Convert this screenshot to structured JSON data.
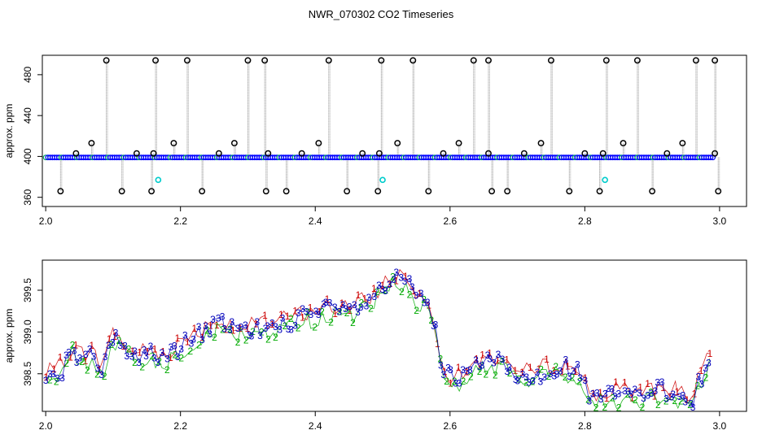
{
  "title": "NWR_070302  CO2 Timeseries",
  "chart_data": [
    {
      "type": "line",
      "ylabel": "approx. ppm",
      "xlim": [
        1.995,
        3.04
      ],
      "ylim": [
        351,
        499
      ],
      "x_ticks": [
        "2.0",
        "2.2",
        "2.4",
        "2.6",
        "2.8",
        "3.0"
      ],
      "y_ticks": [
        "360",
        "400",
        "440",
        "480"
      ],
      "baseline_ppm": 399,
      "series": [
        {
          "color": "#0000ff",
          "spike_up_x": [
            2.09,
            2.163,
            2.21,
            2.3,
            2.325,
            2.42,
            2.498,
            2.545,
            2.635,
            2.657,
            2.75,
            2.832,
            2.878,
            2.965,
            2.993
          ],
          "spike_up_y": 494,
          "spike_mid_x": [
            2.045,
            2.068,
            2.135,
            2.16,
            2.19,
            2.257,
            2.28,
            2.33,
            2.38,
            2.405,
            2.47,
            2.495,
            2.522,
            2.59,
            2.613,
            2.657,
            2.71,
            2.735,
            2.8,
            2.827,
            2.857,
            2.922,
            2.945,
            2.993
          ],
          "spike_mid_y": [
            403,
            413,
            403,
            403,
            413,
            403,
            413,
            403,
            403,
            413,
            403,
            403,
            413,
            403,
            413,
            403,
            403,
            413,
            403,
            403,
            413,
            403,
            413,
            403
          ],
          "spike_down_x": [
            2.022,
            2.113,
            2.157,
            2.232,
            2.327,
            2.357,
            2.447,
            2.493,
            2.568,
            2.662,
            2.685,
            2.777,
            2.822,
            2.9,
            2.998
          ],
          "spike_down_y": 366,
          "cyan_x": [
            2.167,
            2.5,
            2.83
          ],
          "cyan_y": 377
        }
      ]
    },
    {
      "type": "line",
      "ylabel": "approx. ppm",
      "xlim": [
        1.995,
        3.04
      ],
      "ylim": [
        398.05,
        399.86
      ],
      "x_ticks": [
        "2.0",
        "2.2",
        "2.4",
        "2.6",
        "2.8",
        "3.0"
      ],
      "y_ticks": [
        "398.5",
        "399.0",
        "399.5"
      ],
      "x": [
        2.0,
        2.025,
        2.04,
        2.05,
        2.07,
        2.085,
        2.1,
        2.13,
        2.15,
        2.18,
        2.22,
        2.26,
        2.29,
        2.33,
        2.37,
        2.41,
        2.45,
        2.48,
        2.51,
        2.53,
        2.55,
        2.57,
        2.58,
        2.59,
        2.61,
        2.63,
        2.66,
        2.68,
        2.7,
        2.73,
        2.76,
        2.79,
        2.81,
        2.85,
        2.88,
        2.92,
        2.96,
        2.975,
        2.985
      ],
      "y": [
        398.45,
        398.55,
        398.8,
        398.7,
        398.7,
        398.55,
        398.95,
        398.7,
        398.75,
        398.7,
        398.95,
        399.1,
        399.0,
        399.05,
        399.15,
        399.25,
        399.25,
        399.35,
        399.6,
        399.65,
        399.4,
        399.35,
        398.95,
        398.5,
        398.4,
        398.55,
        398.65,
        398.65,
        398.45,
        398.5,
        398.6,
        398.5,
        398.2,
        398.25,
        398.25,
        398.3,
        398.2,
        398.5,
        398.65
      ],
      "series": [
        {
          "name": "1",
          "color": "#cc0000",
          "offset": 0.1
        },
        {
          "name": "2",
          "color": "#00aa00",
          "offset": -0.12
        },
        {
          "name": "3",
          "color": "#0000bb",
          "offset": 0.0
        }
      ]
    }
  ]
}
